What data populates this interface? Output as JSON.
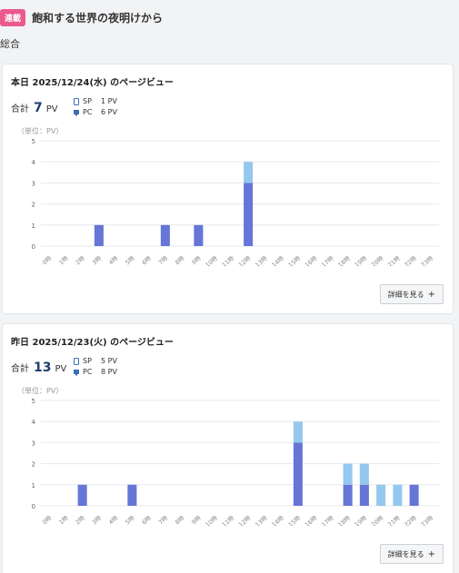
{
  "header": {
    "badge": "連載",
    "title": "飽和する世界の夜明けから"
  },
  "section_label": "総合",
  "colors": {
    "sp": "#95c8ef",
    "pc": "#6676d6",
    "badge": "#ea5a8c"
  },
  "cards": [
    {
      "title": "本日 2025/12/24(水) のページビュー",
      "total_label": "合計",
      "total": "7",
      "total_unit": "PV",
      "sp_label": "SP",
      "sp_value": "1 PV",
      "pc_label": "PC",
      "pc_value": "6 PV",
      "unit_label": "（単位：PV）",
      "details_label": "詳細を見る"
    },
    {
      "title": "昨日 2025/12/23(火) のページビュー",
      "total_label": "合計",
      "total": "13",
      "total_unit": "PV",
      "sp_label": "SP",
      "sp_value": "5 PV",
      "pc_label": "PC",
      "pc_value": "8 PV",
      "unit_label": "（単位：PV）",
      "details_label": "詳細を見る"
    }
  ],
  "chart_data": [
    {
      "type": "bar",
      "stacked": true,
      "categories": [
        "0時",
        "1時",
        "2時",
        "3時",
        "4時",
        "5時",
        "6時",
        "7時",
        "8時",
        "9時",
        "10時",
        "11時",
        "12時",
        "13時",
        "14時",
        "15時",
        "16時",
        "17時",
        "18時",
        "19時",
        "20時",
        "21時",
        "22時",
        "23時"
      ],
      "series": [
        {
          "name": "PC",
          "values": [
            0,
            0,
            0,
            1,
            0,
            0,
            0,
            1,
            0,
            1,
            0,
            0,
            3,
            0,
            0,
            0,
            0,
            0,
            0,
            0,
            0,
            0,
            0,
            0
          ]
        },
        {
          "name": "SP",
          "values": [
            0,
            0,
            0,
            0,
            0,
            0,
            0,
            0,
            0,
            0,
            0,
            0,
            1,
            0,
            0,
            0,
            0,
            0,
            0,
            0,
            0,
            0,
            0,
            0
          ]
        }
      ],
      "yticks": [
        0,
        1,
        2,
        3,
        4,
        5
      ],
      "ylim": [
        0,
        5
      ],
      "grid": true
    },
    {
      "type": "bar",
      "stacked": true,
      "categories": [
        "0時",
        "1時",
        "2時",
        "3時",
        "4時",
        "5時",
        "6時",
        "7時",
        "8時",
        "9時",
        "10時",
        "11時",
        "12時",
        "13時",
        "14時",
        "15時",
        "16時",
        "17時",
        "18時",
        "19時",
        "20時",
        "21時",
        "22時",
        "23時"
      ],
      "series": [
        {
          "name": "PC",
          "values": [
            0,
            0,
            1,
            0,
            0,
            1,
            0,
            0,
            0,
            0,
            0,
            0,
            0,
            0,
            0,
            3,
            0,
            0,
            1,
            1,
            0,
            0,
            1,
            0
          ]
        },
        {
          "name": "SP",
          "values": [
            0,
            0,
            0,
            0,
            0,
            0,
            0,
            0,
            0,
            0,
            0,
            0,
            0,
            0,
            0,
            1,
            0,
            0,
            1,
            1,
            1,
            1,
            0,
            0
          ]
        }
      ],
      "yticks": [
        0,
        1,
        2,
        3,
        4,
        5
      ],
      "ylim": [
        0,
        5
      ],
      "grid": true
    }
  ]
}
